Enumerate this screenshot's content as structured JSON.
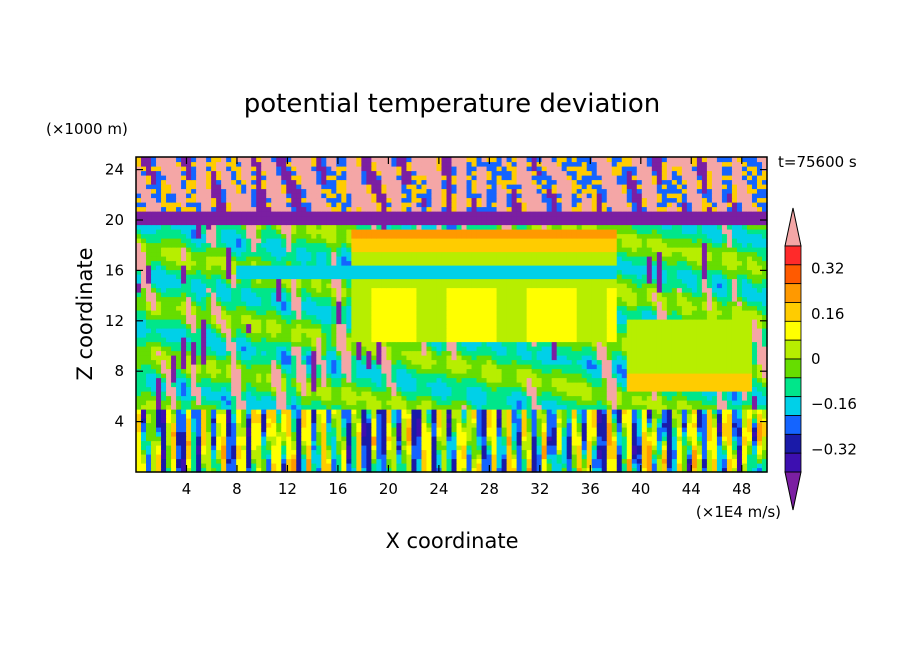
{
  "chart_data": {
    "type": "heatmap",
    "title": "potential temperature deviation",
    "xlabel": "X coordinate",
    "ylabel": "Z coordinate",
    "x_unit": "(×1E4 m/s)",
    "y_unit": "(×1000 m)",
    "time_label": "t=75600 s",
    "xlim": [
      0,
      50
    ],
    "ylim": [
      0,
      25
    ],
    "x_ticks": [
      4,
      8,
      12,
      16,
      20,
      24,
      28,
      32,
      36,
      40,
      44,
      48
    ],
    "y_ticks": [
      4,
      8,
      12,
      16,
      20,
      24
    ],
    "colorbar": {
      "levels": [
        -0.4,
        -0.32,
        -0.24,
        -0.16,
        -0.08,
        0,
        0.08,
        0.16,
        0.24,
        0.32,
        0.4
      ],
      "labels": [
        "0.32",
        "0.16",
        "0",
        "−0.16",
        "−0.32"
      ],
      "label_values": [
        0.32,
        0.16,
        0,
        -0.16,
        -0.32
      ],
      "colors": [
        "#7b1fa2",
        "#3d0fb0",
        "#1a1aa8",
        "#1464ff",
        "#00d0e8",
        "#00e68a",
        "#66dd00",
        "#b7ee00",
        "#ffff00",
        "#ffcc00",
        "#ff9900",
        "#ff5a00",
        "#ff2a2a",
        "#f4a6a6"
      ],
      "extend": "both"
    },
    "description_bands": [
      {
        "z_range": [
          0,
          5
        ],
        "pattern": "turbulent mixed, blue/green/orange streaks"
      },
      {
        "z_range": [
          5,
          10
        ],
        "pattern": "pink and purple plumes"
      },
      {
        "z_range": [
          10,
          19
        ],
        "value_range": [
          0.08,
          0.32
        ],
        "x_range": [
          17,
          38
        ]
      },
      {
        "z_range": [
          15.5,
          16.3
        ],
        "value": -0.16,
        "x_range": [
          8,
          38
        ]
      },
      {
        "z_range": [
          19.8,
          20.6
        ],
        "value": -0.4
      },
      {
        "z_range": [
          20.6,
          25
        ],
        "pattern": "pink with purple patches"
      }
    ]
  }
}
